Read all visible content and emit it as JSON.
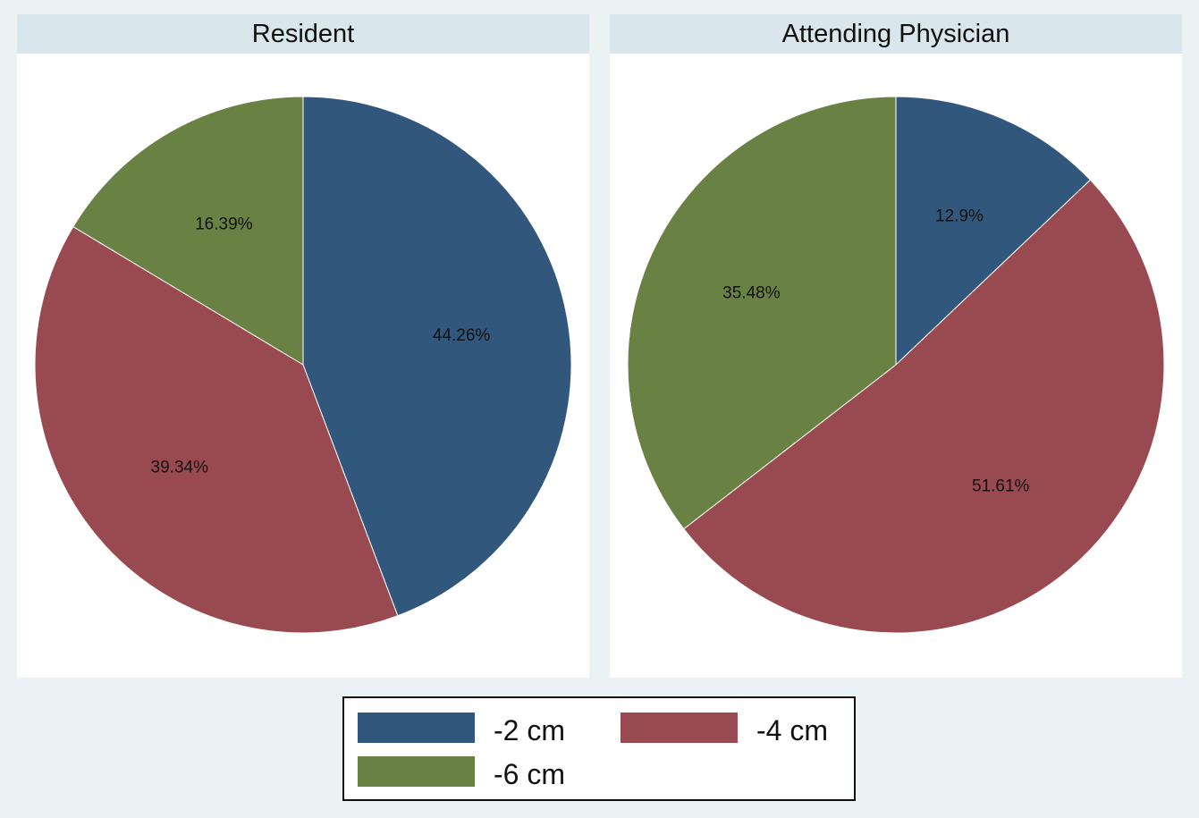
{
  "chart_data": [
    {
      "type": "pie",
      "title": "Resident",
      "categories": [
        "-2 cm",
        "-4 cm",
        "-6 cm"
      ],
      "values": [
        44.26,
        39.34,
        16.39
      ],
      "labels": [
        "44.26%",
        "39.34%",
        "16.39%"
      ],
      "start": "12 o'clock",
      "direction": "clockwise"
    },
    {
      "type": "pie",
      "title": "Attending Physician",
      "categories": [
        "-2 cm",
        "-4 cm",
        "-6 cm"
      ],
      "values": [
        12.9,
        51.61,
        35.48
      ],
      "labels": [
        "12.9%",
        "51.61%",
        "35.48%"
      ],
      "start": "12 o'clock",
      "direction": "clockwise"
    }
  ],
  "legend": {
    "position": "bottom",
    "items": [
      {
        "label": "-2 cm",
        "color": "#31587c"
      },
      {
        "label": "-4 cm",
        "color": "#994a50"
      },
      {
        "label": "-6 cm",
        "color": "#698142"
      }
    ]
  },
  "colors": {
    "background": "#eaf2f3",
    "panel": "#ffffff",
    "header": "#d9e6eb"
  }
}
